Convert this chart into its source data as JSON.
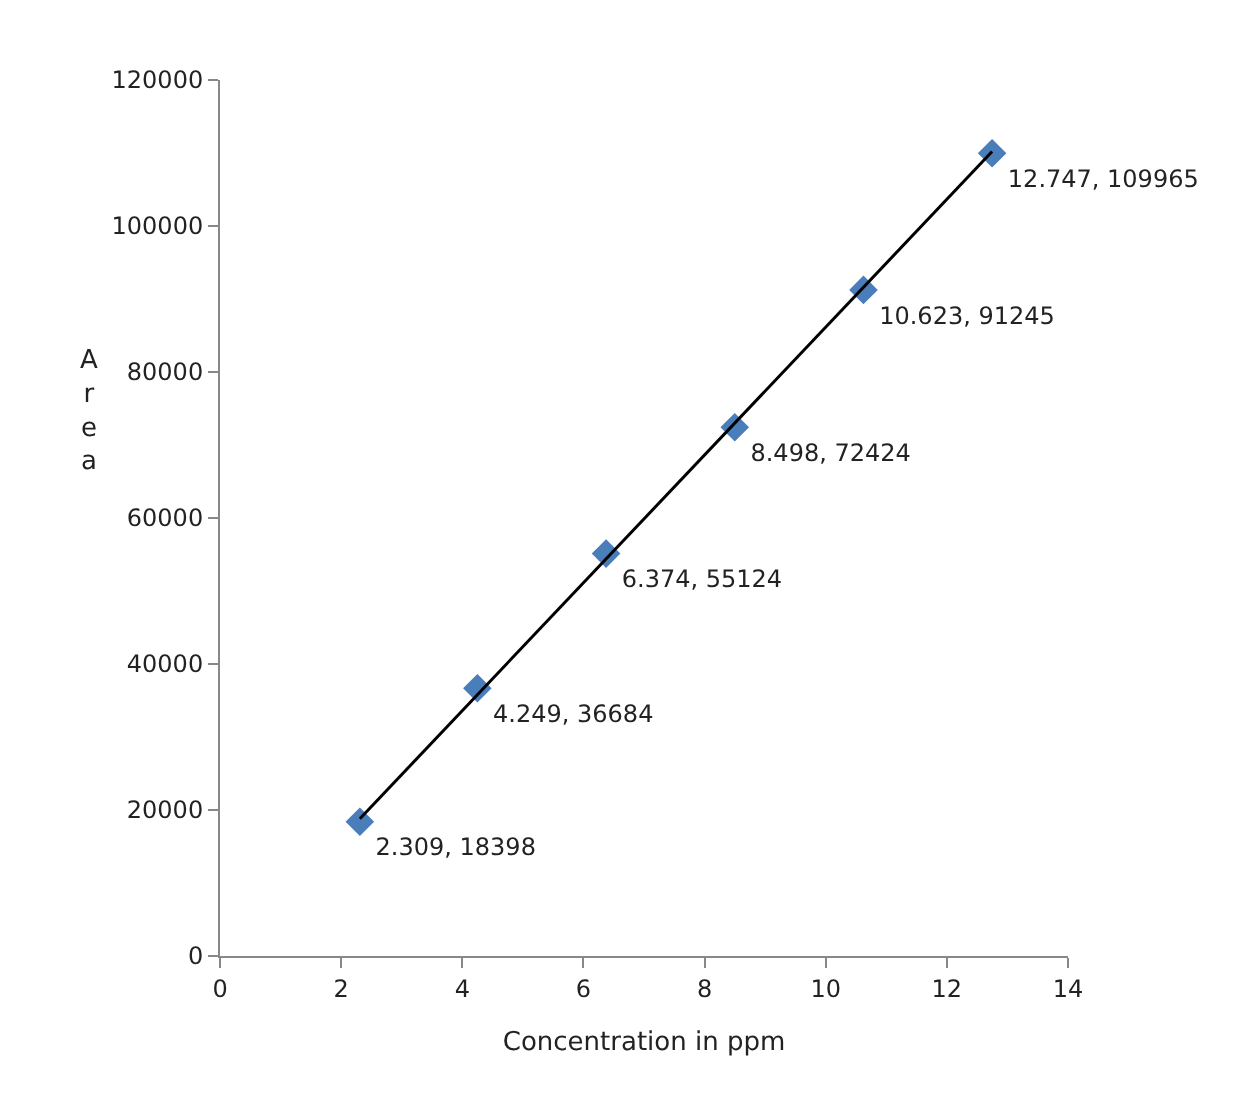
{
  "chart_data": {
    "type": "scatter",
    "xlabel": "Concentration in ppm",
    "ylabel": "Area",
    "xlim": [
      0,
      14
    ],
    "xticks": [
      0,
      2,
      4,
      6,
      8,
      10,
      12,
      14
    ],
    "ylim": [
      0,
      120000
    ],
    "yticks": [
      0,
      20000,
      40000,
      60000,
      80000,
      100000,
      120000
    ],
    "series": [
      {
        "marker": "diamond",
        "color": "#4a7ebb",
        "x": [
          2.309,
          4.249,
          6.374,
          8.498,
          10.623,
          12.747
        ],
        "values": [
          18398,
          36684,
          55124,
          72424,
          91245,
          109965
        ],
        "value_labels": [
          "2.309, 18398",
          "4.249, 36684",
          "6.374, 55124",
          "8.498, 72424",
          "10.623, 91245",
          "12.747, 109965"
        ]
      },
      {
        "type": "line",
        "color": "#000000",
        "x": [
          2.309,
          12.747
        ],
        "values": [
          18800,
          110200
        ]
      }
    ]
  }
}
